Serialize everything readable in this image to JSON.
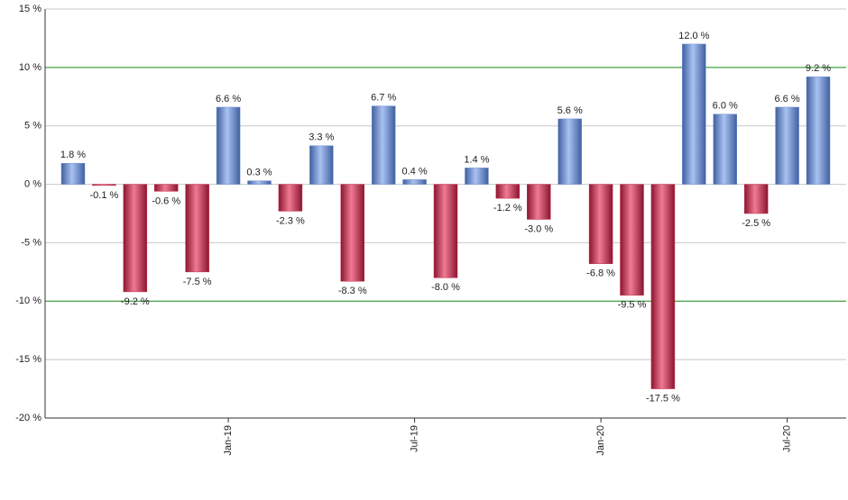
{
  "chart_data": {
    "type": "bar",
    "categories": [
      null,
      null,
      null,
      null,
      null,
      "Jan-19",
      null,
      null,
      null,
      null,
      null,
      "Jul-19",
      null,
      null,
      null,
      null,
      null,
      "Jan-20",
      null,
      null,
      null,
      null,
      null,
      "Jul-20",
      null
    ],
    "values": [
      1.8,
      -0.1,
      -9.2,
      -0.6,
      -7.5,
      6.6,
      0.3,
      -2.3,
      3.3,
      -8.3,
      6.7,
      0.4,
      -8.0,
      1.4,
      -1.2,
      -3.0,
      5.6,
      -6.8,
      -9.5,
      -17.5,
      12.0,
      6.0,
      -2.5,
      6.6,
      9.2
    ],
    "value_labels": [
      "1.8 %",
      "-0.1 %",
      "-9.2 %",
      "-0.6 %",
      "-7.5 %",
      "6.6 %",
      "0.3 %",
      "-2.3 %",
      "3.3 %",
      "-8.3 %",
      "6.7 %",
      "0.4 %",
      "-8.0 %",
      "1.4 %",
      "-1.2 %",
      "-3.0 %",
      "5.6 %",
      "-6.8 %",
      "-9.5 %",
      "-17.5 %",
      "12.0 %",
      "6.0 %",
      "-2.5 %",
      "6.6 %",
      "9.2 %"
    ],
    "positive_color": "#6f90d0",
    "negative_color": "#c8304f",
    "ylim": [
      -20,
      15
    ],
    "yticks": [
      {
        "value": -20,
        "label": "-20 %"
      },
      {
        "value": -15,
        "label": "-15 %"
      },
      {
        "value": -10,
        "label": "-10 %"
      },
      {
        "value": -5,
        "label": "-5 %"
      },
      {
        "value": 0,
        "label": "0 %"
      },
      {
        "value": 5,
        "label": "5 %"
      },
      {
        "value": 10,
        "label": "10 %"
      },
      {
        "value": 15,
        "label": "15 %"
      }
    ],
    "grid": true,
    "highlight_lines": [
      10,
      -10
    ],
    "highlight_color": "#138a13"
  }
}
